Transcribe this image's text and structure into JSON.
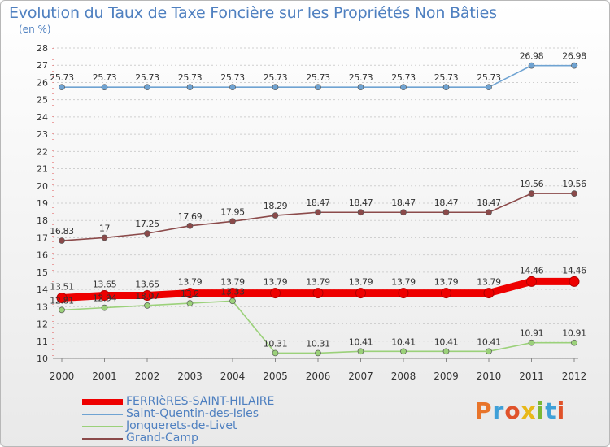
{
  "chart_data": {
    "type": "line",
    "title": "Evolution du Taux de Taxe Foncière sur les Propriétés Non Bâties",
    "ylabel": "(en %)",
    "xlabel": "",
    "ylim": [
      10,
      28
    ],
    "yticks": [
      "10",
      "11",
      "12",
      "13",
      "14",
      "15",
      "16",
      "17",
      "18",
      "19",
      "20",
      "21",
      "22",
      "23",
      "24",
      "25",
      "26",
      "27",
      "28"
    ],
    "categories": [
      "2000",
      "2001",
      "2002",
      "2003",
      "2004",
      "2005",
      "2006",
      "2007",
      "2008",
      "2009",
      "2010",
      "2011",
      "2012"
    ],
    "series": [
      {
        "name": "FERRIèRES-SAINT-HILAIRE",
        "color": "#ee0000",
        "values": [
          13.51,
          13.65,
          13.65,
          13.79,
          13.79,
          13.79,
          13.79,
          13.79,
          13.79,
          13.79,
          13.79,
          14.46,
          14.46
        ],
        "labels": [
          "13.51",
          "13.65",
          "13.65",
          "13.79",
          "13.79",
          "13.79",
          "13.79",
          "13.79",
          "13.79",
          "13.79",
          "13.79",
          "14.46",
          "14.46"
        ]
      },
      {
        "name": "Saint-Quentin-des-Isles",
        "color": "#6fa3d2",
        "values": [
          25.73,
          25.73,
          25.73,
          25.73,
          25.73,
          25.73,
          25.73,
          25.73,
          25.73,
          25.73,
          25.73,
          26.98,
          26.98
        ],
        "labels": [
          "25.73",
          "25.73",
          "25.73",
          "25.73",
          "25.73",
          "25.73",
          "25.73",
          "25.73",
          "25.73",
          "25.73",
          "25.73",
          "26.98",
          "26.98"
        ]
      },
      {
        "name": "Jonquerets-de-Livet",
        "color": "#9bd17a",
        "values": [
          12.81,
          12.94,
          13.07,
          13.2,
          13.33,
          10.31,
          10.31,
          10.41,
          10.41,
          10.41,
          10.41,
          10.91,
          10.91
        ],
        "labels": [
          "12.81",
          "12.94",
          "13.07",
          "13.2",
          "13.33",
          "10.31",
          "10.31",
          "10.41",
          "10.41",
          "10.41",
          "10.41",
          "10.91",
          "10.91"
        ]
      },
      {
        "name": "Grand-Camp",
        "color": "#8b4a4a",
        "values": [
          16.83,
          17,
          17.25,
          17.69,
          17.95,
          18.29,
          18.47,
          18.47,
          18.47,
          18.47,
          18.47,
          19.56,
          19.56
        ],
        "labels": [
          "16.83",
          "17",
          "17.25",
          "17.69",
          "17.95",
          "18.29",
          "18.47",
          "18.47",
          "18.47",
          "18.47",
          "18.47",
          "19.56",
          "19.56"
        ]
      }
    ]
  },
  "logo": {
    "letters": [
      "P",
      "r",
      "o",
      "x",
      "i",
      "t",
      "i"
    ]
  }
}
